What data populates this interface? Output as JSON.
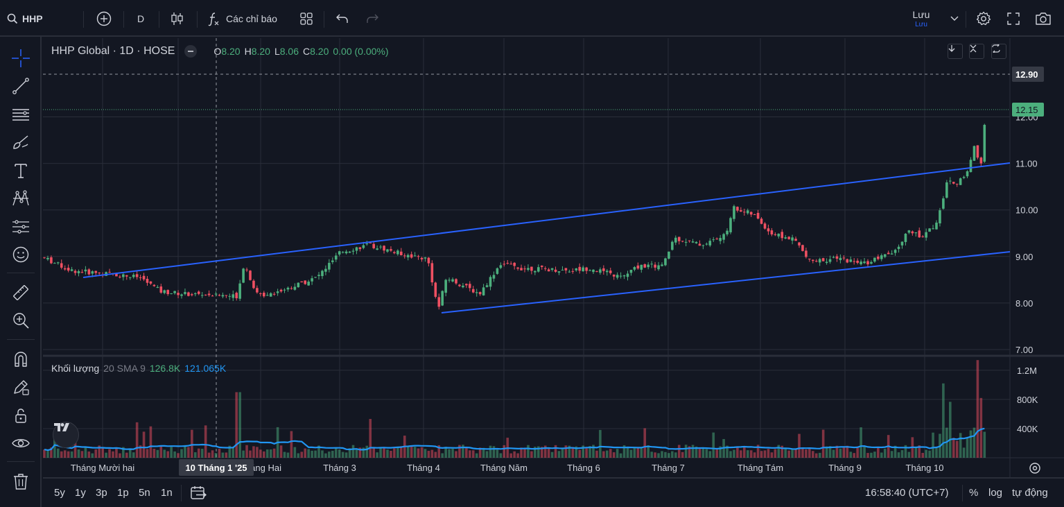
{
  "toolbar": {
    "symbol": "HHP",
    "interval": "D",
    "indicators_label": "Các chỉ báo",
    "save_label": "Lưu",
    "save_sublabel": "Lưu"
  },
  "legend": {
    "title": "HHP Global · 1D · HOSE",
    "open_key": "O",
    "open": "8.20",
    "high_key": "H",
    "high": "8.20",
    "low_key": "L",
    "low": "8.06",
    "close_key": "C",
    "close": "8.20",
    "change": "0.00 (0.00%)"
  },
  "volume_legend": {
    "name": "Khối lượng",
    "params": "20 SMA 9",
    "volume": "126.8K",
    "sma": "121.065K"
  },
  "price_axis": {
    "ticks": [
      "12.00",
      "11.00",
      "10.00",
      "9.00",
      "8.00",
      "7.00"
    ],
    "line_label": "12.90",
    "last_price_label": "12.15"
  },
  "volume_axis": {
    "ticks": [
      "1.2M",
      "800K",
      "400K"
    ]
  },
  "time_axis": {
    "labels": [
      "Tháng Mười hai",
      "Tháng Hai",
      "Tháng 3",
      "Tháng 4",
      "Tháng Năm",
      "Tháng 6",
      "Tháng 7",
      "Tháng Tám",
      "Tháng 9",
      "Tháng 10"
    ],
    "crosshair_label": "10 Tháng 1 '25"
  },
  "bottom": {
    "ranges": [
      "5y",
      "1y",
      "3p",
      "1p",
      "5n",
      "1n"
    ],
    "clock": "16:58:40 (UTC+7)",
    "percent": "%",
    "log": "log",
    "auto": "tự động"
  },
  "colors": {
    "up": "#4caf7d",
    "down": "#ef5062",
    "trendline": "#2962ff",
    "vol_sma": "#2196f3",
    "background": "#131722"
  },
  "chart_data": {
    "type": "candlestick",
    "symbol": "HHP Global",
    "interval": "1D",
    "exchange": "HOSE",
    "price_range": [
      7.0,
      12.9
    ],
    "volume_range": [
      0,
      1300000
    ],
    "grid": true,
    "horizontal_line": 12.9,
    "last_price": 12.15,
    "monthly_key_prices": [
      {
        "month": "Tháng Mười hai",
        "approx_close": 8.6
      },
      {
        "month": "Tháng 1",
        "approx_close": 8.1
      },
      {
        "month": "Tháng Hai",
        "approx_close": 8.2
      },
      {
        "month": "Tháng 3",
        "approx_close": 9.2
      },
      {
        "month": "Tháng 4",
        "approx_close": 8.4
      },
      {
        "month": "Tháng Năm",
        "approx_close": 8.7
      },
      {
        "month": "Tháng 6",
        "approx_close": 8.6
      },
      {
        "month": "Tháng 7",
        "approx_close": 9.2
      },
      {
        "month": "Tháng Tám",
        "approx_close": 9.4
      },
      {
        "month": "Tháng 9",
        "approx_close": 8.9
      },
      {
        "month": "Tháng 10",
        "approx_close": 10.8
      }
    ],
    "channel": {
      "upper": {
        "from": {
          "x": "Tháng Mười hai",
          "y": 8.55
        },
        "to": {
          "x": "Tháng 10",
          "y": 11.0
        }
      },
      "lower": {
        "from": {
          "x": "Tháng 4",
          "y": 7.8
        },
        "to": {
          "x": "Tháng 10",
          "y": 9.1
        }
      }
    }
  }
}
